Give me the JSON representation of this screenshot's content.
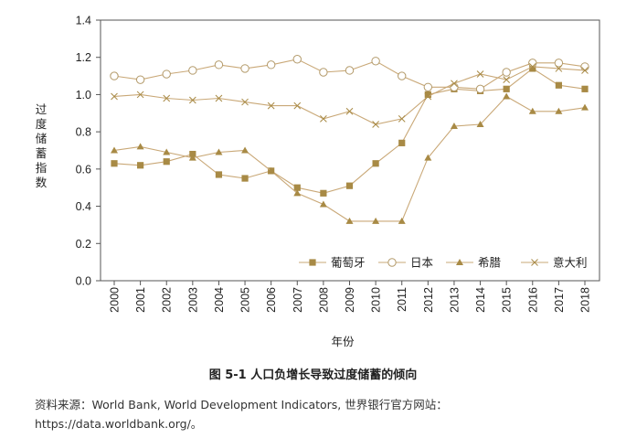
{
  "chart_data": {
    "type": "line",
    "xlabel": "年份",
    "ylabel": "过度储蓄指数",
    "ylim": [
      0,
      1.4
    ],
    "yticks": [
      "0.0",
      "0.2",
      "0.4",
      "0.6",
      "0.8",
      "1.0",
      "1.2",
      "1.4"
    ],
    "categories": [
      "2000",
      "2001",
      "2002",
      "2003",
      "2004",
      "2005",
      "2006",
      "2007",
      "2008",
      "2009",
      "2010",
      "2011",
      "2012",
      "2013",
      "2014",
      "2015",
      "2016",
      "2017",
      "2018"
    ],
    "legend_position": "bottom-right",
    "grid": false,
    "line_color": "#c9a877",
    "series": [
      {
        "name": "葡萄牙",
        "marker": "filled-square",
        "color": "#a88a45",
        "values": [
          0.63,
          0.62,
          0.64,
          0.68,
          0.57,
          0.55,
          0.59,
          0.5,
          0.47,
          0.51,
          0.63,
          0.74,
          1.0,
          1.03,
          1.02,
          1.03,
          1.14,
          1.05,
          1.03
        ]
      },
      {
        "name": "日本",
        "marker": "open-circle",
        "color": "#b39a6a",
        "values": [
          1.1,
          1.08,
          1.11,
          1.13,
          1.16,
          1.14,
          1.16,
          1.19,
          1.12,
          1.13,
          1.18,
          1.1,
          1.04,
          1.04,
          1.03,
          1.12,
          1.17,
          1.17,
          1.15
        ]
      },
      {
        "name": "希腊",
        "marker": "filled-triangle",
        "color": "#a88a45",
        "values": [
          0.7,
          0.72,
          0.69,
          0.66,
          0.69,
          0.7,
          0.59,
          0.47,
          0.41,
          0.32,
          0.32,
          0.32,
          0.66,
          0.83,
          0.84,
          0.99,
          0.91,
          0.91,
          0.93
        ]
      },
      {
        "name": "意大利",
        "marker": "cross",
        "color": "#a88a45",
        "values": [
          0.99,
          1.0,
          0.98,
          0.97,
          0.98,
          0.96,
          0.94,
          0.94,
          0.87,
          0.91,
          0.84,
          0.87,
          0.99,
          1.06,
          1.11,
          1.08,
          1.15,
          1.14,
          1.13
        ]
      }
    ]
  },
  "figure": {
    "caption": "图 5-1   人口负增长导致过度储蓄的倾向",
    "source": "资料来源：World Bank, World Development Indicators, 世界银行官方网站：https://data.worldbank.org/。"
  }
}
